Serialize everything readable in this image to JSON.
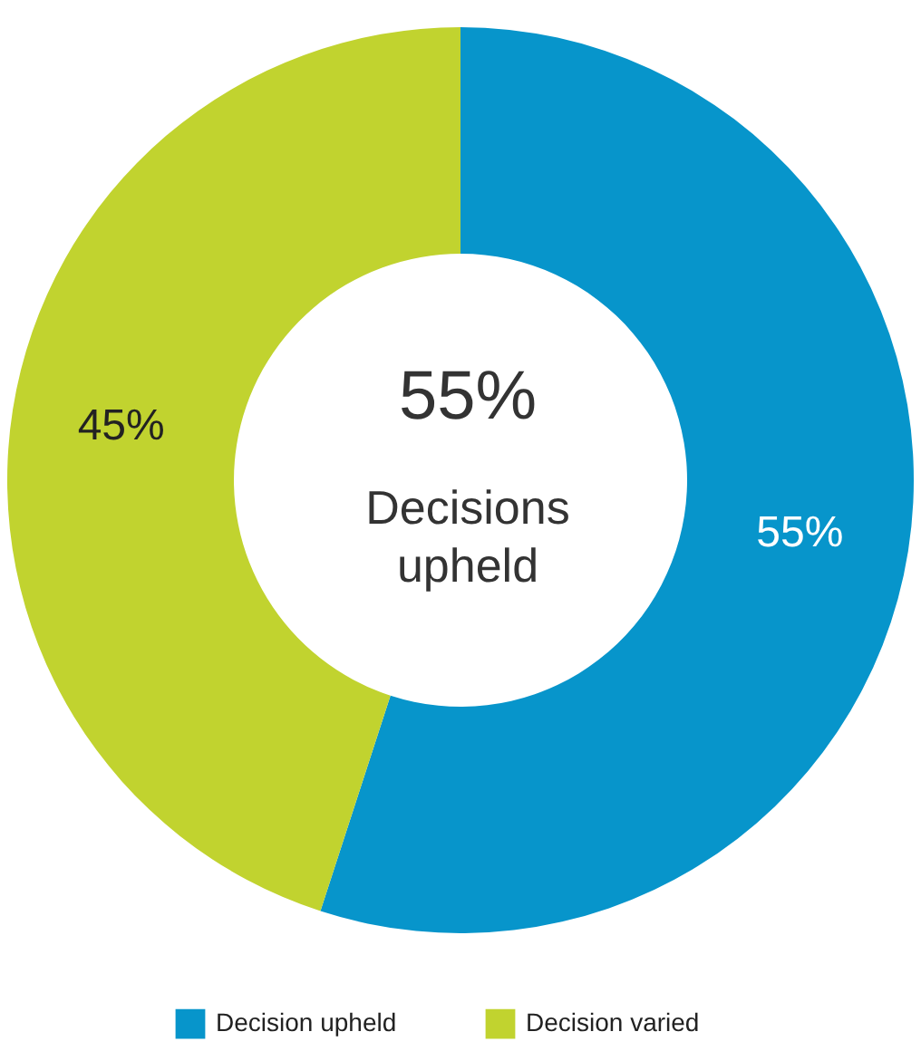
{
  "chart_data": {
    "type": "donut",
    "categories": [
      "Decision upheld",
      "Decision varied"
    ],
    "values": [
      55,
      45
    ],
    "colors": [
      "#0795cb",
      "#c1d32f"
    ],
    "value_labels": [
      "55%",
      "45%"
    ],
    "annotations": [
      "55%",
      "Decisions upheld"
    ],
    "legend": "bottom"
  }
}
